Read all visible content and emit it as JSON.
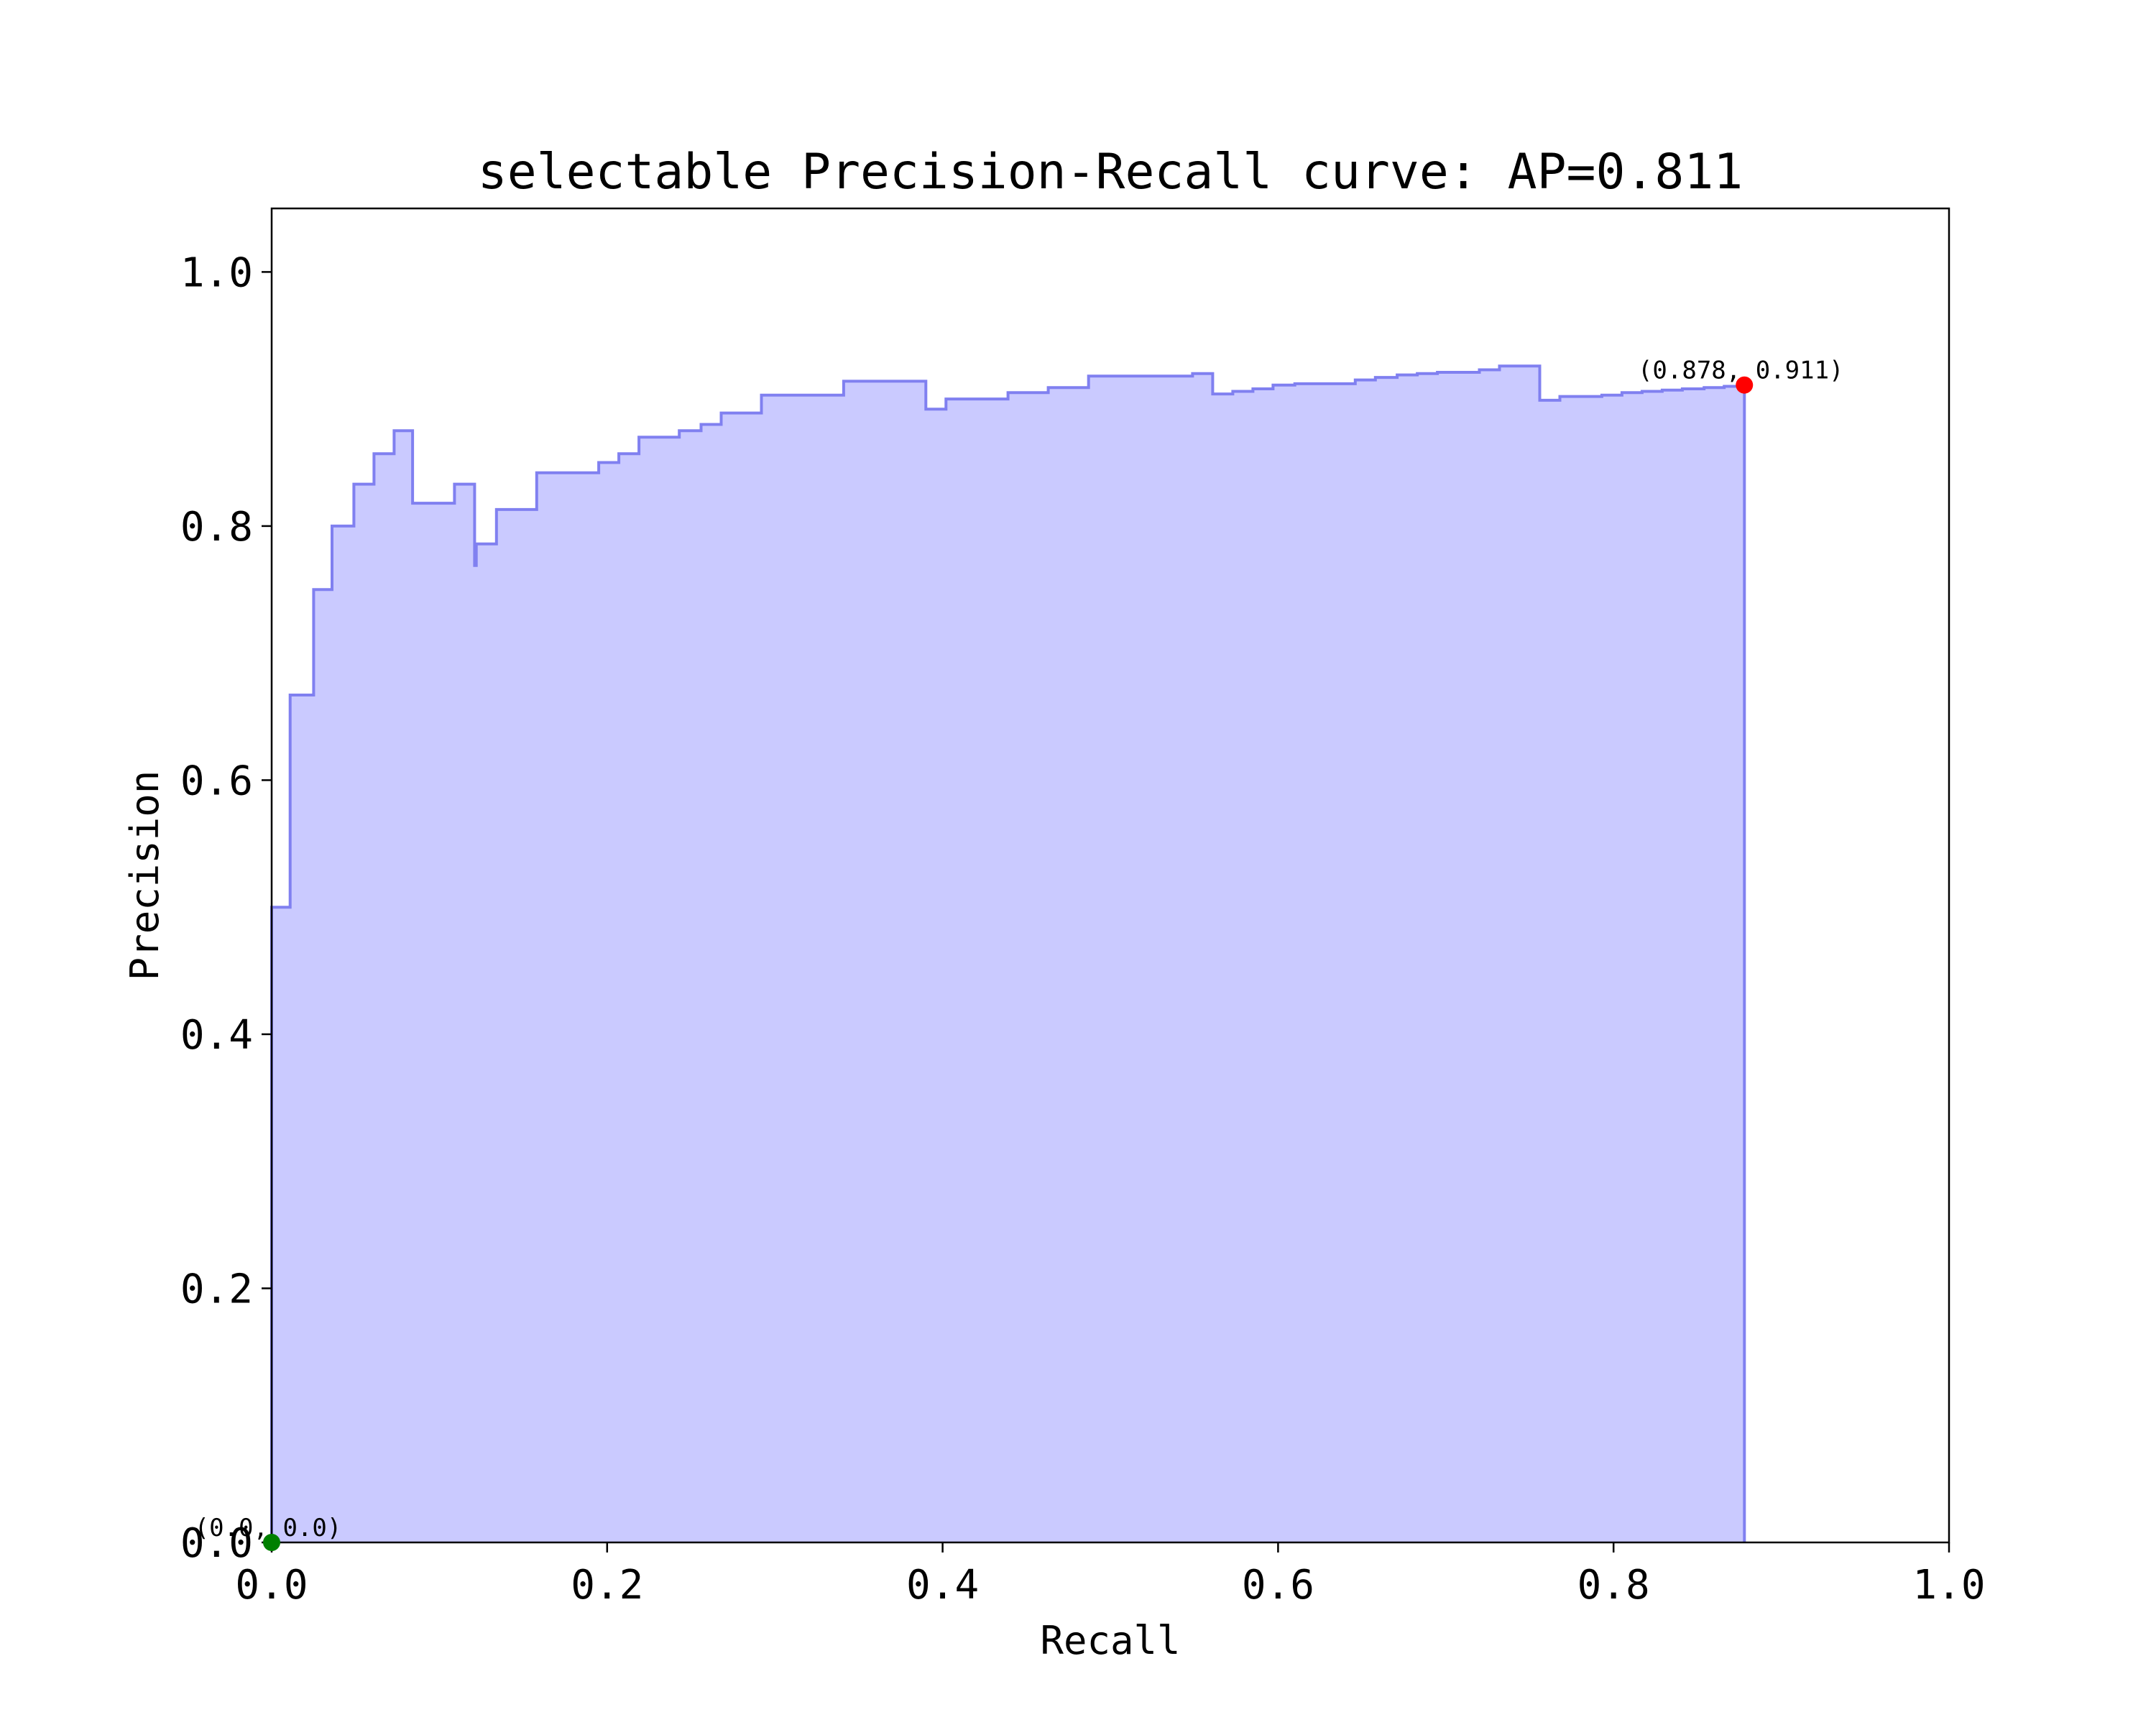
{
  "chart_data": {
    "type": "area",
    "title": "selectable Precision-Recall curve: AP=0.811",
    "xlabel": "Recall",
    "ylabel": "Precision",
    "xlim": [
      0.0,
      1.0
    ],
    "ylim": [
      0.0,
      1.05
    ],
    "x_ticks": [
      "0.0",
      "0.2",
      "0.4",
      "0.6",
      "0.8",
      "1.0"
    ],
    "y_ticks": [
      "0.0",
      "0.2",
      "0.4",
      "0.6",
      "0.8",
      "1.0"
    ],
    "grid": false,
    "step": "post",
    "series": [
      {
        "color": "#8080f0",
        "fill_color": "#cacaff",
        "x": [
          0.0,
          0.011,
          0.025,
          0.036,
          0.049,
          0.061,
          0.073,
          0.084,
          0.109,
          0.121,
          0.122,
          0.134,
          0.158,
          0.195,
          0.207,
          0.219,
          0.243,
          0.256,
          0.268,
          0.292,
          0.341,
          0.39,
          0.402,
          0.439,
          0.463,
          0.487,
          0.549,
          0.561,
          0.573,
          0.585,
          0.597,
          0.61,
          0.646,
          0.658,
          0.671,
          0.683,
          0.695,
          0.72,
          0.732,
          0.756,
          0.768,
          0.793,
          0.805,
          0.817,
          0.829,
          0.841,
          0.854,
          0.866,
          0.878
        ],
        "y": [
          0.5,
          0.667,
          0.75,
          0.8,
          0.833,
          0.857,
          0.875,
          0.818,
          0.833,
          0.769,
          0.786,
          0.813,
          0.842,
          0.85,
          0.857,
          0.87,
          0.875,
          0.88,
          0.889,
          0.903,
          0.914,
          0.892,
          0.9,
          0.905,
          0.909,
          0.918,
          0.92,
          0.904,
          0.906,
          0.908,
          0.911,
          0.912,
          0.915,
          0.917,
          0.919,
          0.92,
          0.921,
          0.923,
          0.926,
          0.899,
          0.902,
          0.903,
          0.905,
          0.906,
          0.907,
          0.908,
          0.909,
          0.91,
          0.911
        ]
      }
    ],
    "annotations": [
      {
        "label": "(0.0, 0.0)",
        "x": 0.0,
        "y": 0.0,
        "marker_color": "#008000"
      },
      {
        "label": "(0.878, 0.911)",
        "x": 0.878,
        "y": 0.911,
        "marker_color": "#ff0000"
      }
    ]
  }
}
